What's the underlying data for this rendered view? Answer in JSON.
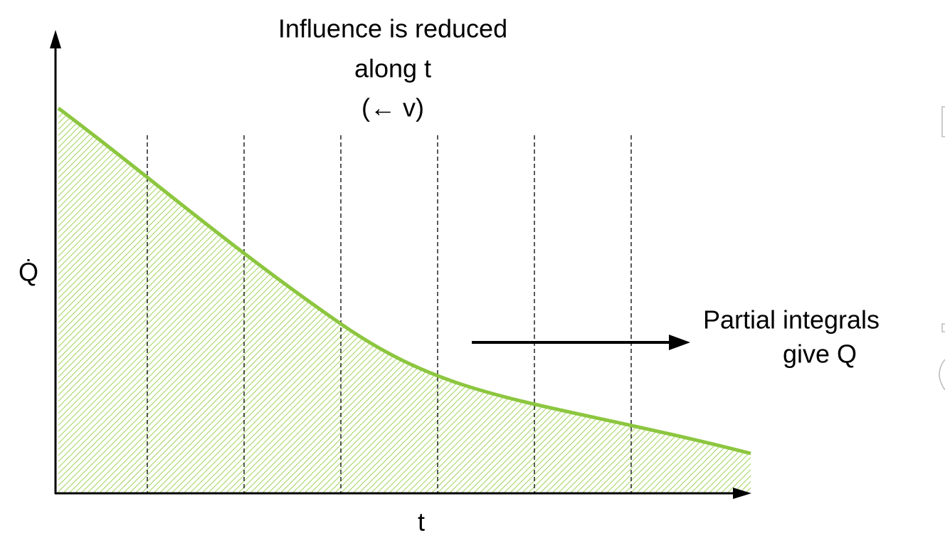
{
  "annotation": {
    "lines": [
      "Influence is reduced",
      "along t",
      "(← v)"
    ]
  },
  "y_axis": {
    "label": "Q̇"
  },
  "x_axis": {
    "label": "t"
  },
  "note": {
    "lines": [
      "Partial integrals",
      "give Q"
    ]
  }
}
